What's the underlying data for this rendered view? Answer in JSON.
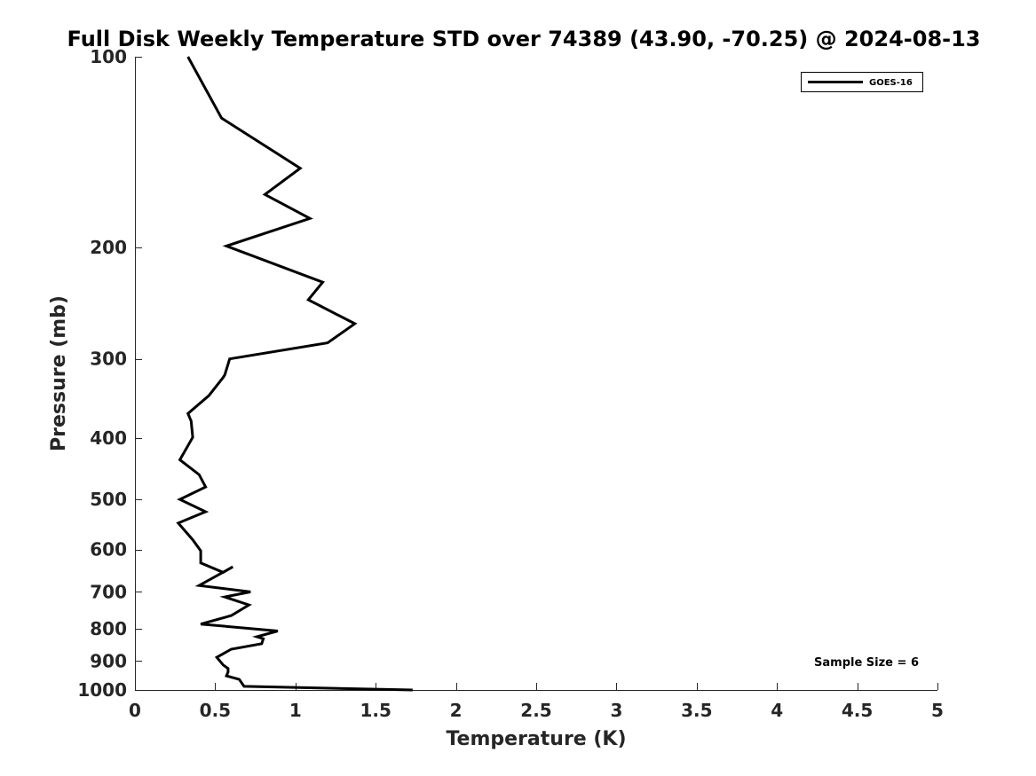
{
  "chart_data": {
    "type": "line",
    "title": "Full Disk Weekly Temperature STD over 74389 (43.90, -70.25) @ 2024-08-13",
    "xlabel": "Temperature (K)",
    "ylabel": "Pressure (mb)",
    "xlim": [
      0,
      5
    ],
    "ylim": [
      100,
      1000
    ],
    "y_scale": "log",
    "y_reversed": true,
    "x_ticks": [
      "0",
      "0.5",
      "1",
      "1.5",
      "2",
      "2.5",
      "3",
      "3.5",
      "4",
      "4.5",
      "5"
    ],
    "x_tick_values": [
      0,
      0.5,
      1,
      1.5,
      2,
      2.5,
      3,
      3.5,
      4,
      4.5,
      5
    ],
    "y_ticks": [
      "100",
      "200",
      "300",
      "400",
      "500",
      "600",
      "700",
      "800",
      "900",
      "1000"
    ],
    "y_tick_values": [
      100,
      200,
      300,
      400,
      500,
      600,
      700,
      800,
      900,
      1000
    ],
    "grid": false,
    "legend_position": "top-right",
    "annotation": "Sample Size = 6",
    "series": [
      {
        "name": "GOES-16",
        "color": "#000000",
        "points": [
          [
            0.33,
            100
          ],
          [
            0.54,
            125
          ],
          [
            1.03,
            150
          ],
          [
            0.81,
            165
          ],
          [
            1.09,
            180
          ],
          [
            0.57,
            199
          ],
          [
            1.17,
            227
          ],
          [
            1.08,
            242
          ],
          [
            1.37,
            264
          ],
          [
            1.2,
            283
          ],
          [
            0.59,
            300
          ],
          [
            0.56,
            318
          ],
          [
            0.55,
            321
          ],
          [
            0.46,
            343
          ],
          [
            0.33,
            366
          ],
          [
            0.35,
            376
          ],
          [
            0.36,
            399
          ],
          [
            0.28,
            433
          ],
          [
            0.4,
            457
          ],
          [
            0.44,
            478
          ],
          [
            0.28,
            500
          ],
          [
            0.44,
            523
          ],
          [
            0.27,
            545
          ],
          [
            0.36,
            579
          ],
          [
            0.41,
            603
          ],
          [
            0.41,
            630
          ],
          [
            0.55,
            652
          ],
          [
            0.61,
            639
          ],
          [
            0.4,
            684
          ],
          [
            0.72,
            700
          ],
          [
            0.56,
            713
          ],
          [
            0.71,
            734
          ],
          [
            0.6,
            763
          ],
          [
            0.41,
            787
          ],
          [
            0.89,
            807
          ],
          [
            0.76,
            824
          ],
          [
            0.8,
            830
          ],
          [
            0.79,
            845
          ],
          [
            0.6,
            862
          ],
          [
            0.51,
            888
          ],
          [
            0.55,
            913
          ],
          [
            0.58,
            925
          ],
          [
            0.58,
            937
          ],
          [
            0.57,
            950
          ],
          [
            0.65,
            962
          ],
          [
            0.68,
            987
          ],
          [
            1.73,
            1000
          ]
        ]
      }
    ]
  }
}
